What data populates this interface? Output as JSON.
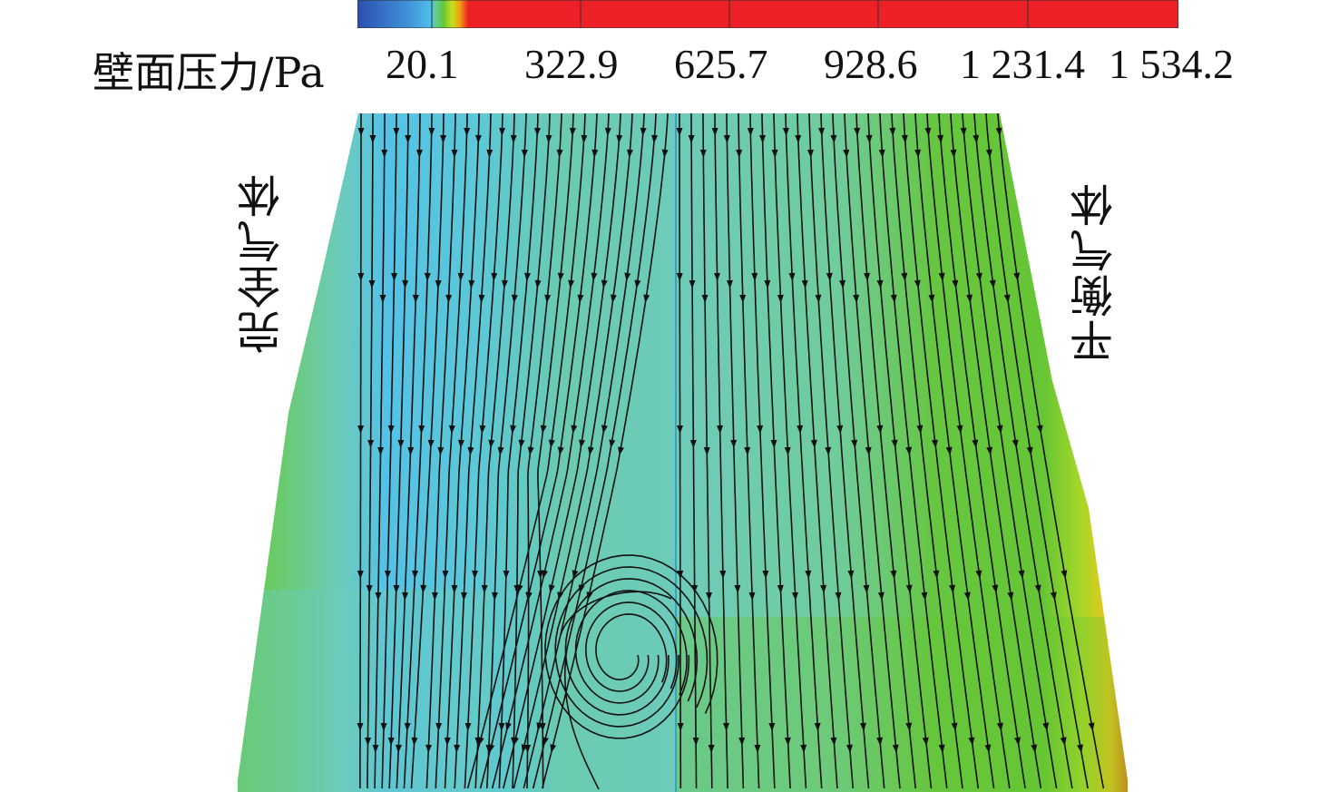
{
  "legend": {
    "title": "壁面压力/Pa",
    "ticks": [
      "20.1",
      "322.9",
      "625.7",
      "928.6",
      "1 231.4",
      "1 534.2"
    ],
    "colormap": [
      "#2b4fb0",
      "#4bb8e8",
      "#5fcf9a",
      "#66c534",
      "#c6e020",
      "#f0a010",
      "#ee2027"
    ]
  },
  "labels": {
    "left": "完全气体",
    "right": "平衡气体"
  },
  "colors": {
    "field_green": "#66c640",
    "field_teal": "#6dcbbb",
    "field_blue": "#54c2e6",
    "high_pressure": "#ee2027",
    "streamline": "#111111"
  }
}
